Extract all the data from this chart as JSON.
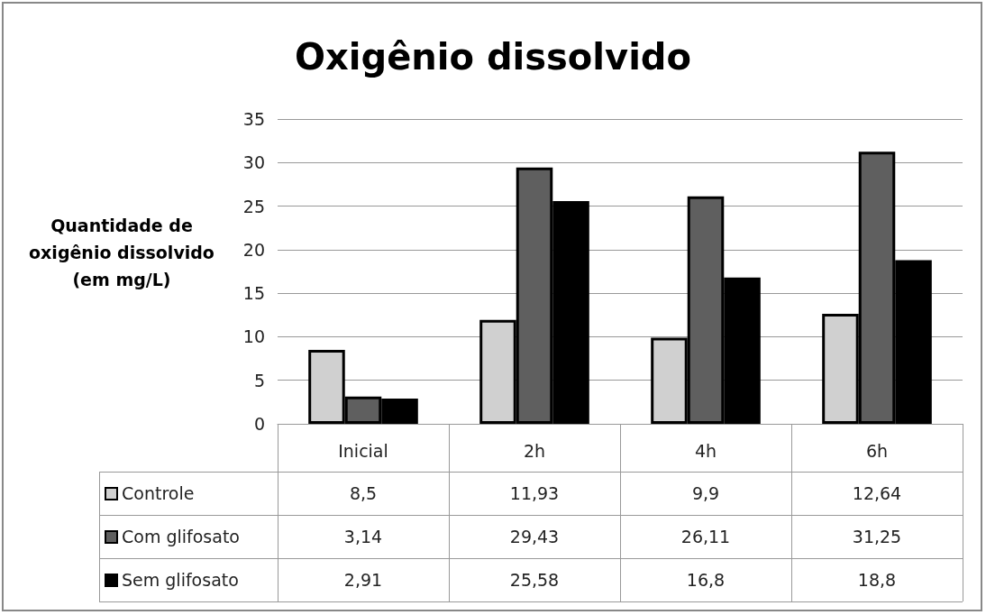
{
  "chart_data": {
    "type": "bar",
    "title": "Oxigênio dissolvido",
    "ylabel": "Quantidade de oxigênio dissolvido (em mg/L)",
    "categories": [
      "Inicial",
      "2h",
      "4h",
      "6h"
    ],
    "series": [
      {
        "name": "Controle",
        "color": "#d0d0d0",
        "values": [
          8.5,
          11.93,
          9.9,
          12.64
        ],
        "value_labels": [
          "8,5",
          "11,93",
          "9,9",
          "12,64"
        ]
      },
      {
        "name": "Com glifosato",
        "color": "#5f5f5f",
        "values": [
          3.14,
          29.43,
          26.11,
          31.25
        ],
        "value_labels": [
          "3,14",
          "29,43",
          "26,11",
          "31,25"
        ]
      },
      {
        "name": "Sem glifosato",
        "color": "#000000",
        "values": [
          2.91,
          25.58,
          16.8,
          18.8
        ],
        "value_labels": [
          "2,91",
          "25,58",
          "16,8",
          "18,8"
        ]
      }
    ],
    "ylim": [
      0,
      35
    ],
    "yticks": [
      0,
      5,
      10,
      15,
      20,
      25,
      30,
      35
    ],
    "grid": "y",
    "legend": "bottom"
  }
}
